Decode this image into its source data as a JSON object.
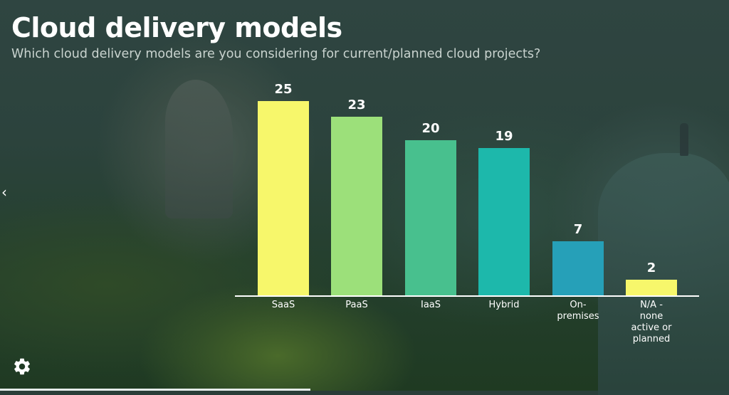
{
  "slide": {
    "title": "Cloud delivery models",
    "subtitle": "Which cloud delivery models are you considering for current/planned cloud projects?"
  },
  "navigation": {
    "prev_icon": "chevron-left-icon",
    "prev_glyph": "‹",
    "settings_icon": "gear-icon",
    "progress_percent": 42.6
  },
  "chart_data": {
    "type": "bar",
    "title": "Cloud delivery models",
    "subtitle": "Which cloud delivery models are you considering for current/planned cloud projects?",
    "categories": [
      "SaaS",
      "PaaS",
      "IaaS",
      "Hybrid",
      "On-premises",
      "N/A - none active or planned"
    ],
    "category_display": [
      [
        "SaaS"
      ],
      [
        "PaaS"
      ],
      [
        "IaaS"
      ],
      [
        "Hybrid"
      ],
      [
        "On-",
        "premises"
      ],
      [
        "N/A -",
        "none",
        "active or",
        "planned"
      ]
    ],
    "values": [
      25,
      23,
      20,
      19,
      7,
      2
    ],
    "value_labels": [
      "25",
      "23",
      "20",
      "19",
      "7",
      "2"
    ],
    "colors": [
      "#f7f76b",
      "#9ce07a",
      "#48c08e",
      "#1db8ab",
      "#26a0b8",
      "#f7f76b"
    ],
    "xlabel": "",
    "ylabel": "",
    "ylim": [
      0,
      25
    ],
    "grid": false,
    "legend": "none",
    "data_labels": "above bars"
  },
  "colors": {
    "text_primary": "#ffffff",
    "text_secondary": "#c9d3cf",
    "axis": "#ffffff"
  }
}
